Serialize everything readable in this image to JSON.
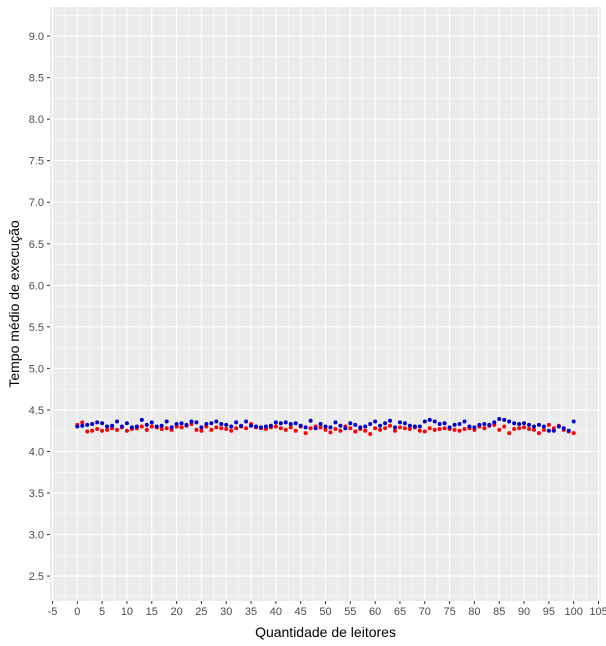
{
  "chart_data": {
    "type": "scatter",
    "title": "",
    "xlabel": "Quantidade de leitores",
    "ylabel": "Tempo médio de execução",
    "xlim": [
      -5.5,
      105.5
    ],
    "ylim": [
      2.2,
      9.35
    ],
    "grid": true,
    "legend": "none",
    "x_ticks": [
      -5,
      0,
      5,
      10,
      15,
      20,
      25,
      30,
      35,
      40,
      45,
      50,
      55,
      60,
      65,
      70,
      75,
      80,
      85,
      90,
      95,
      100,
      105
    ],
    "x_tick_labels": [
      "-5",
      "0",
      "5",
      "10",
      "15",
      "20",
      "25",
      "30",
      "35",
      "40",
      "45",
      "50",
      "55",
      "60",
      "65",
      "70",
      "75",
      "80",
      "85",
      "90",
      "95",
      "100",
      "105"
    ],
    "y_ticks": [
      2.5,
      3.0,
      3.5,
      4.0,
      4.5,
      5.0,
      5.5,
      6.0,
      6.5,
      7.0,
      7.5,
      8.0,
      8.5,
      9.0
    ],
    "y_tick_labels": [
      "2.5",
      "3.0",
      "3.5",
      "4.0",
      "4.5",
      "5.0",
      "5.5",
      "6.0",
      "6.5",
      "7.0",
      "7.5",
      "8.0",
      "8.5",
      "9.0"
    ],
    "x": [
      0,
      1,
      2,
      3,
      4,
      5,
      6,
      7,
      8,
      9,
      10,
      11,
      12,
      13,
      14,
      15,
      16,
      17,
      18,
      19,
      20,
      21,
      22,
      23,
      24,
      25,
      26,
      27,
      28,
      29,
      30,
      31,
      32,
      33,
      34,
      35,
      36,
      37,
      38,
      39,
      40,
      41,
      42,
      43,
      44,
      45,
      46,
      47,
      48,
      49,
      50,
      51,
      52,
      53,
      54,
      55,
      56,
      57,
      58,
      59,
      60,
      61,
      62,
      63,
      64,
      65,
      66,
      67,
      68,
      69,
      70,
      71,
      72,
      73,
      74,
      75,
      76,
      77,
      78,
      79,
      80,
      81,
      82,
      83,
      84,
      85,
      86,
      87,
      88,
      89,
      90,
      91,
      92,
      93,
      94,
      95,
      96,
      97,
      98,
      99,
      100
    ],
    "series": [
      {
        "color": "#ff0000",
        "values": [
          4.32,
          4.35,
          4.24,
          4.25,
          4.27,
          4.25,
          4.26,
          4.28,
          4.26,
          4.29,
          4.25,
          4.27,
          4.28,
          4.3,
          4.26,
          4.3,
          4.29,
          4.27,
          4.28,
          4.26,
          4.3,
          4.29,
          4.31,
          4.33,
          4.26,
          4.25,
          4.3,
          4.26,
          4.29,
          4.28,
          4.27,
          4.25,
          4.28,
          4.3,
          4.28,
          4.33,
          4.29,
          4.28,
          4.27,
          4.29,
          4.3,
          4.28,
          4.26,
          4.29,
          4.25,
          4.3,
          4.22,
          4.28,
          4.3,
          4.29,
          4.26,
          4.23,
          4.27,
          4.25,
          4.3,
          4.28,
          4.24,
          4.27,
          4.25,
          4.21,
          4.28,
          4.26,
          4.28,
          4.31,
          4.25,
          4.29,
          4.28,
          4.27,
          4.29,
          4.25,
          4.24,
          4.28,
          4.26,
          4.27,
          4.28,
          4.27,
          4.26,
          4.25,
          4.27,
          4.28,
          4.26,
          4.3,
          4.28,
          4.31,
          4.32,
          4.26,
          4.3,
          4.22,
          4.27,
          4.28,
          4.29,
          4.27,
          4.26,
          4.22,
          4.26,
          4.32,
          4.28,
          4.31,
          4.26,
          4.24,
          4.22
        ]
      },
      {
        "color": "#0000cd",
        "values": [
          4.3,
          4.31,
          4.32,
          4.33,
          4.35,
          4.34,
          4.3,
          4.31,
          4.36,
          4.3,
          4.34,
          4.29,
          4.3,
          4.38,
          4.32,
          4.35,
          4.3,
          4.31,
          4.36,
          4.29,
          4.33,
          4.34,
          4.32,
          4.36,
          4.35,
          4.29,
          4.33,
          4.34,
          4.36,
          4.33,
          4.32,
          4.3,
          4.35,
          4.31,
          4.36,
          4.31,
          4.3,
          4.29,
          4.3,
          4.31,
          4.35,
          4.34,
          4.35,
          4.33,
          4.34,
          4.31,
          4.29,
          4.37,
          4.28,
          4.33,
          4.3,
          4.29,
          4.35,
          4.31,
          4.28,
          4.34,
          4.32,
          4.29,
          4.3,
          4.33,
          4.36,
          4.31,
          4.34,
          4.37,
          4.29,
          4.35,
          4.34,
          4.31,
          4.3,
          4.3,
          4.36,
          4.38,
          4.36,
          4.33,
          4.34,
          4.29,
          4.32,
          4.33,
          4.36,
          4.3,
          4.29,
          4.32,
          4.33,
          4.32,
          4.35,
          4.39,
          4.38,
          4.36,
          4.34,
          4.33,
          4.34,
          4.32,
          4.3,
          4.32,
          4.3,
          4.25,
          4.25,
          4.3,
          4.28,
          4.25,
          4.36
        ]
      }
    ]
  }
}
